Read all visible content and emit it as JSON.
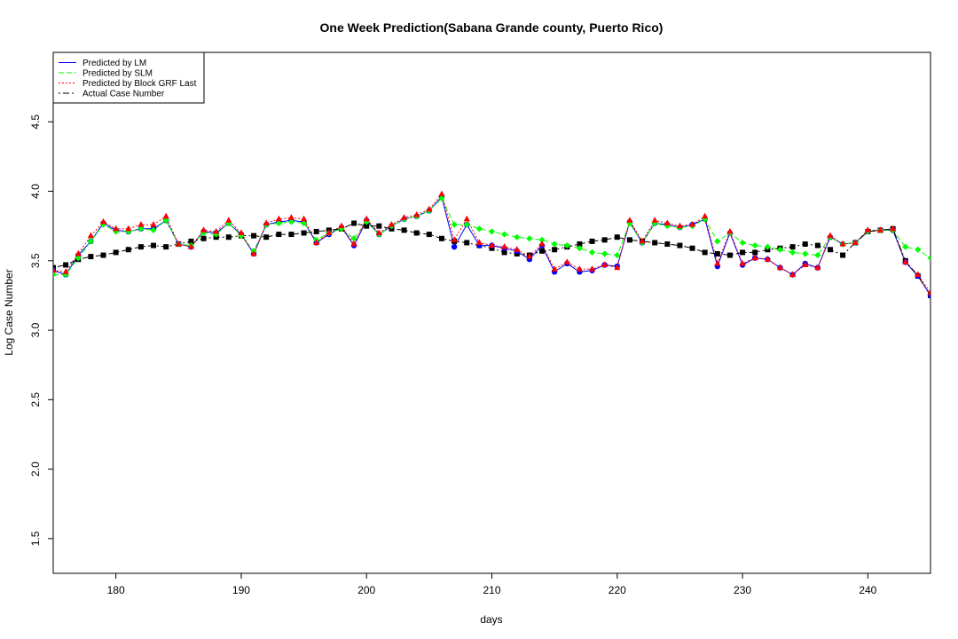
{
  "chart_data": {
    "type": "line",
    "title": "One Week Prediction(Sabana Grande county, Puerto Rico)",
    "xlabel": "days",
    "ylabel": "Log Case Number",
    "xlim": [
      175,
      245
    ],
    "ylim": [
      1.25,
      5.0
    ],
    "x_ticks": [
      180,
      190,
      200,
      210,
      220,
      230,
      240
    ],
    "y_ticks": [
      1.5,
      2.0,
      2.5,
      3.0,
      3.5,
      4.0,
      4.5
    ],
    "x_tick_labels": [
      "180",
      "190",
      "200",
      "210",
      "220",
      "230",
      "240"
    ],
    "y_tick_labels": [
      "1.5",
      "2.0",
      "2.5",
      "3.0",
      "3.5",
      "4.0",
      "4.5"
    ],
    "grid": false,
    "legend_position": "top-left",
    "x": [
      175,
      176,
      177,
      178,
      179,
      180,
      181,
      182,
      183,
      184,
      185,
      186,
      187,
      188,
      189,
      190,
      191,
      192,
      193,
      194,
      195,
      196,
      197,
      198,
      199,
      200,
      201,
      202,
      203,
      204,
      205,
      206,
      207,
      208,
      209,
      210,
      211,
      212,
      213,
      214,
      215,
      216,
      217,
      218,
      219,
      220,
      221,
      222,
      223,
      224,
      225,
      226,
      227,
      228,
      229,
      230,
      231,
      232,
      233,
      234,
      235,
      236,
      237,
      238,
      239,
      240,
      241,
      242,
      243,
      244,
      245
    ],
    "series": [
      {
        "name": "Predicted by LM",
        "color": "#0000ff",
        "line_style": "solid",
        "marker": "circle",
        "values": [
          3.43,
          3.4,
          3.54,
          3.64,
          3.77,
          3.72,
          3.71,
          3.73,
          3.73,
          3.79,
          3.62,
          3.6,
          3.71,
          3.7,
          3.77,
          3.69,
          3.55,
          3.76,
          3.78,
          3.79,
          3.78,
          3.63,
          3.69,
          3.74,
          3.61,
          3.79,
          3.69,
          3.75,
          3.8,
          3.82,
          3.86,
          3.96,
          3.6,
          3.76,
          3.61,
          3.61,
          3.59,
          3.57,
          3.51,
          3.61,
          3.42,
          3.48,
          3.42,
          3.43,
          3.47,
          3.46,
          3.78,
          3.63,
          3.77,
          3.76,
          3.74,
          3.76,
          3.8,
          3.46,
          3.7,
          3.47,
          3.52,
          3.51,
          3.45,
          3.4,
          3.48,
          3.45,
          3.67,
          3.62,
          3.63,
          3.71,
          3.72,
          3.72,
          3.49,
          3.39,
          3.25
        ]
      },
      {
        "name": "Predicted by SLM",
        "color": "#00ff00",
        "line_style": "dashed",
        "marker": "diamond",
        "values": [
          3.4,
          3.4,
          3.52,
          3.64,
          3.76,
          3.71,
          3.71,
          3.73,
          3.72,
          3.79,
          3.62,
          3.61,
          3.7,
          3.69,
          3.77,
          3.68,
          3.57,
          3.76,
          3.77,
          3.78,
          3.77,
          3.65,
          3.7,
          3.73,
          3.66,
          3.78,
          3.69,
          3.75,
          3.8,
          3.82,
          3.86,
          3.95,
          3.76,
          3.76,
          3.73,
          3.71,
          3.69,
          3.67,
          3.66,
          3.65,
          3.62,
          3.61,
          3.59,
          3.56,
          3.55,
          3.54,
          3.77,
          3.63,
          3.77,
          3.75,
          3.74,
          3.75,
          3.8,
          3.64,
          3.7,
          3.63,
          3.61,
          3.6,
          3.58,
          3.56,
          3.55,
          3.54,
          3.67,
          3.62,
          3.63,
          3.71,
          3.72,
          3.72,
          3.6,
          3.58,
          3.52
        ]
      },
      {
        "name": "Predicted by Block GRF Last",
        "color": "#ff0000",
        "line_style": "dotted",
        "marker": "triangle",
        "values": [
          3.43,
          3.42,
          3.55,
          3.68,
          3.78,
          3.73,
          3.73,
          3.76,
          3.76,
          3.82,
          3.62,
          3.6,
          3.72,
          3.71,
          3.79,
          3.7,
          3.55,
          3.77,
          3.8,
          3.81,
          3.8,
          3.63,
          3.7,
          3.75,
          3.62,
          3.8,
          3.7,
          3.76,
          3.81,
          3.83,
          3.87,
          3.98,
          3.65,
          3.8,
          3.63,
          3.61,
          3.6,
          3.58,
          3.53,
          3.62,
          3.44,
          3.49,
          3.44,
          3.44,
          3.47,
          3.45,
          3.79,
          3.64,
          3.79,
          3.77,
          3.75,
          3.76,
          3.82,
          3.48,
          3.71,
          3.48,
          3.52,
          3.51,
          3.45,
          3.4,
          3.47,
          3.45,
          3.68,
          3.62,
          3.63,
          3.72,
          3.72,
          3.73,
          3.49,
          3.4,
          3.27
        ]
      },
      {
        "name": "Actual Case Number",
        "color": "#000000",
        "line_style": "dotdash",
        "marker": "square",
        "values": [
          3.45,
          3.47,
          3.51,
          3.53,
          3.54,
          3.56,
          3.58,
          3.6,
          3.61,
          3.6,
          3.62,
          3.64,
          3.66,
          3.67,
          3.67,
          3.68,
          3.68,
          3.67,
          3.69,
          3.69,
          3.7,
          3.71,
          3.72,
          3.73,
          3.77,
          3.75,
          3.75,
          3.73,
          3.72,
          3.7,
          3.69,
          3.66,
          3.64,
          3.63,
          3.61,
          3.59,
          3.56,
          3.55,
          3.54,
          3.57,
          3.58,
          3.6,
          3.62,
          3.64,
          3.65,
          3.67,
          3.65,
          3.64,
          3.63,
          3.62,
          3.61,
          3.59,
          3.56,
          3.55,
          3.54,
          3.56,
          3.56,
          3.58,
          3.59,
          3.6,
          3.62,
          3.61,
          3.58,
          3.54,
          3.63,
          3.71,
          3.72,
          3.73,
          3.5,
          3.39,
          3.25
        ]
      }
    ]
  }
}
